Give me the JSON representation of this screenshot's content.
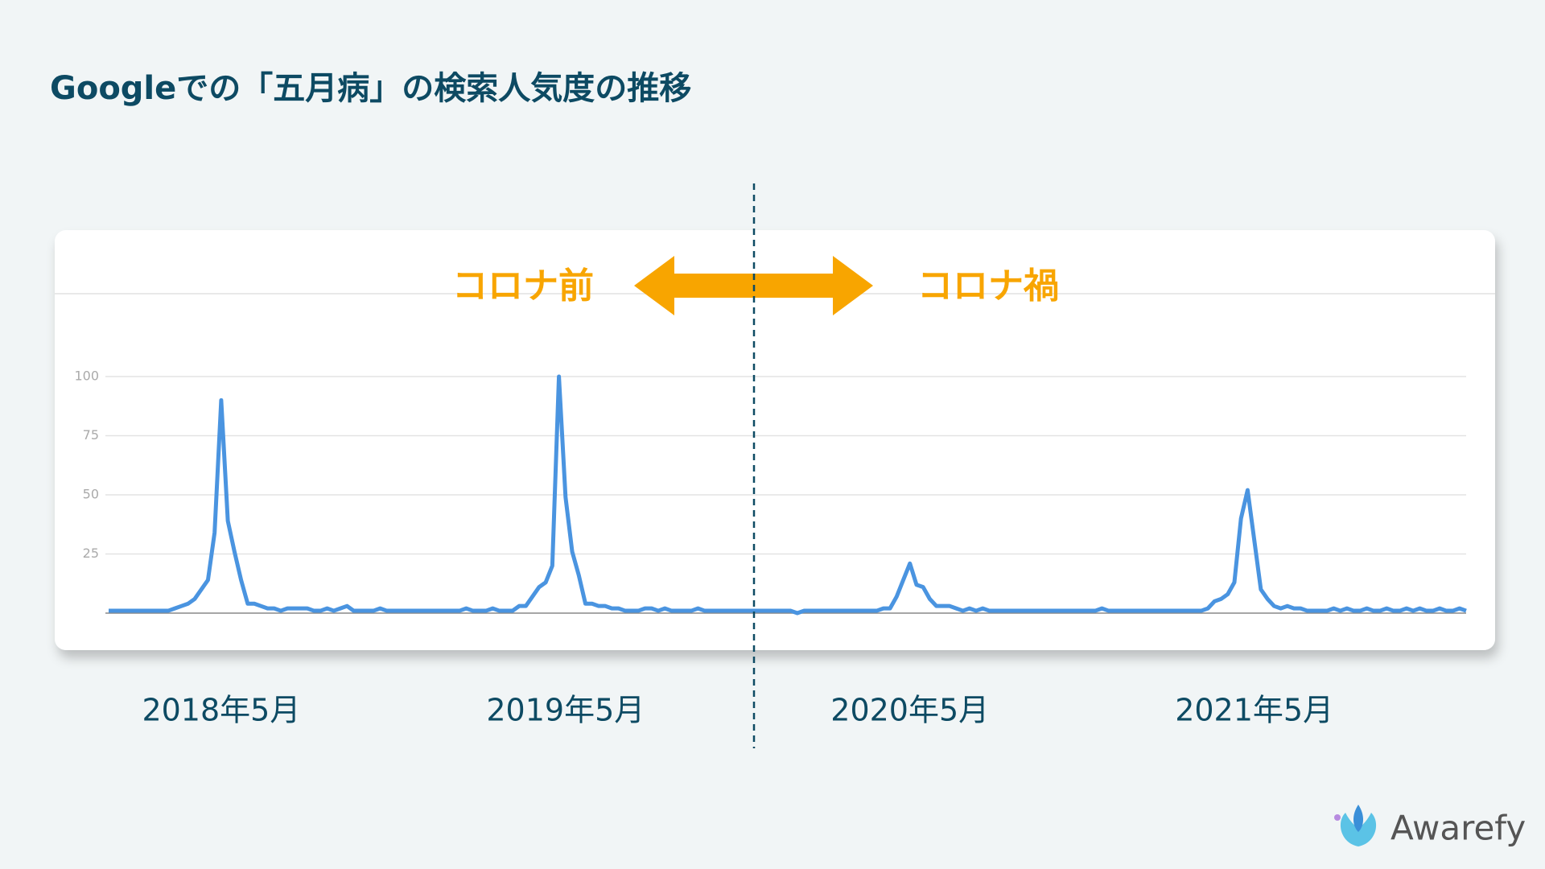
{
  "chart_data": {
    "type": "line",
    "title": "Googleでの「五月病」の検索人気度の推移",
    "annotations": [
      "コロナ前",
      "コロナ禍"
    ],
    "color": "#4a94e0",
    "ylim": [
      0,
      100
    ],
    "yticks": [
      25,
      50,
      75,
      100
    ],
    "grid": true,
    "categories": [
      null,
      null,
      null,
      null,
      null,
      null,
      null,
      null,
      null,
      null,
      null,
      null,
      null,
      null,
      null,
      null,
      null,
      "2018年5月",
      null,
      null,
      null,
      null,
      null,
      null,
      null,
      null,
      null,
      null,
      null,
      null,
      null,
      null,
      null,
      null,
      null,
      null,
      null,
      null,
      null,
      null,
      null,
      null,
      null,
      null,
      null,
      null,
      null,
      null,
      null,
      null,
      null,
      null,
      null,
      null,
      null,
      null,
      null,
      null,
      null,
      null,
      null,
      null,
      null,
      null,
      null,
      null,
      null,
      null,
      null,
      "2019年5月",
      null,
      null,
      null,
      null,
      null,
      null,
      null,
      null,
      null,
      null,
      null,
      null,
      null,
      null,
      null,
      null,
      null,
      null,
      null,
      null,
      null,
      null,
      null,
      null,
      null,
      null,
      null,
      null,
      null,
      null,
      null,
      null,
      null,
      null,
      null,
      null,
      null,
      null,
      null,
      null,
      null,
      null,
      null,
      null,
      null,
      null,
      null,
      null,
      null,
      null,
      null,
      "2020年5月",
      null,
      null,
      null,
      null,
      null,
      null,
      null,
      null,
      null,
      null,
      null,
      null,
      null,
      null,
      null,
      null,
      null,
      null,
      null,
      null,
      null,
      null,
      null,
      null,
      null,
      null,
      null,
      null,
      null,
      null,
      null,
      null,
      null,
      null,
      null,
      null,
      null,
      null,
      null,
      null,
      null,
      null,
      null,
      null,
      null,
      null,
      null,
      null,
      null,
      null,
      null,
      "2021年5月",
      null,
      null,
      null,
      null,
      null,
      null,
      null,
      null,
      null,
      null,
      null,
      null,
      null,
      null,
      null,
      null,
      null,
      null,
      null,
      null,
      null,
      null,
      null,
      null,
      null,
      null,
      null,
      null,
      null,
      null,
      null,
      null
    ],
    "values": [
      1,
      1,
      1,
      1,
      1,
      1,
      1,
      1,
      1,
      1,
      2,
      3,
      4,
      6,
      10,
      14,
      34,
      90,
      39,
      26,
      14,
      4,
      4,
      3,
      2,
      2,
      1,
      2,
      2,
      2,
      2,
      1,
      1,
      2,
      1,
      2,
      3,
      1,
      1,
      1,
      1,
      2,
      1,
      1,
      1,
      1,
      1,
      1,
      1,
      1,
      1,
      1,
      1,
      1,
      2,
      1,
      1,
      1,
      2,
      1,
      1,
      1,
      3,
      3,
      7,
      11,
      13,
      20,
      100,
      49,
      26,
      16,
      4,
      4,
      3,
      3,
      2,
      2,
      1,
      1,
      1,
      2,
      2,
      1,
      2,
      1,
      1,
      1,
      1,
      2,
      1,
      1,
      1,
      1,
      1,
      1,
      1,
      1,
      1,
      1,
      1,
      1,
      1,
      1,
      0,
      1,
      1,
      1,
      1,
      1,
      1,
      1,
      1,
      1,
      1,
      1,
      1,
      2,
      2,
      7,
      14,
      21,
      12,
      11,
      6,
      3,
      3,
      3,
      2,
      1,
      2,
      1,
      2,
      1,
      1,
      1,
      1,
      1,
      1,
      1,
      1,
      1,
      1,
      1,
      1,
      1,
      1,
      1,
      1,
      1,
      2,
      1,
      1,
      1,
      1,
      1,
      1,
      1,
      1,
      1,
      1,
      1,
      1,
      1,
      1,
      1,
      2,
      5,
      6,
      8,
      13,
      40,
      52,
      31,
      10,
      6,
      3,
      2,
      3,
      2,
      2,
      1,
      1,
      1,
      1,
      2,
      1,
      2,
      1,
      1,
      2,
      1,
      1,
      2,
      1,
      1,
      2,
      1,
      2,
      1,
      1,
      2,
      1,
      1,
      2,
      1
    ]
  },
  "logo": "Awarefy"
}
